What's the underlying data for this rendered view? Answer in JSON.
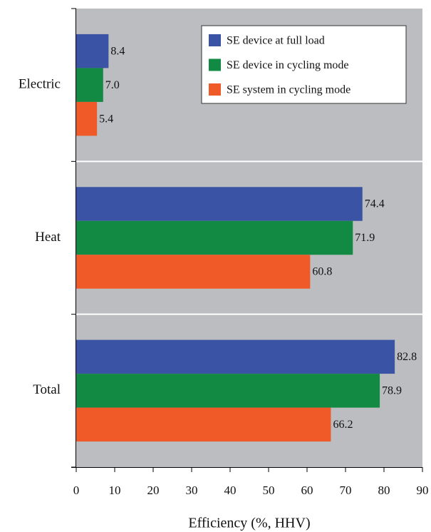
{
  "chart_data": {
    "type": "barh",
    "xlabel": "Efficiency (%, HHV)",
    "categories": [
      "Electric",
      "Heat",
      "Total"
    ],
    "series": [
      {
        "name": "SE device at full load",
        "color": "#3a53a4",
        "values": [
          8.4,
          74.4,
          82.8
        ]
      },
      {
        "name": "SE device in cycling mode",
        "color": "#138a43",
        "values": [
          7.0,
          71.9,
          78.9
        ],
        "value_labels": [
          "7.0",
          "71.9",
          "78.9"
        ]
      },
      {
        "name": "SE system in cycling mode",
        "color": "#f05a28",
        "values": [
          5.4,
          60.8,
          66.2
        ]
      }
    ],
    "xlim": [
      0,
      90
    ],
    "xticks": [
      0,
      10,
      20,
      30,
      40,
      50,
      60,
      70,
      80,
      90
    ],
    "legend": "upper right",
    "background": "#bcbdc0"
  }
}
